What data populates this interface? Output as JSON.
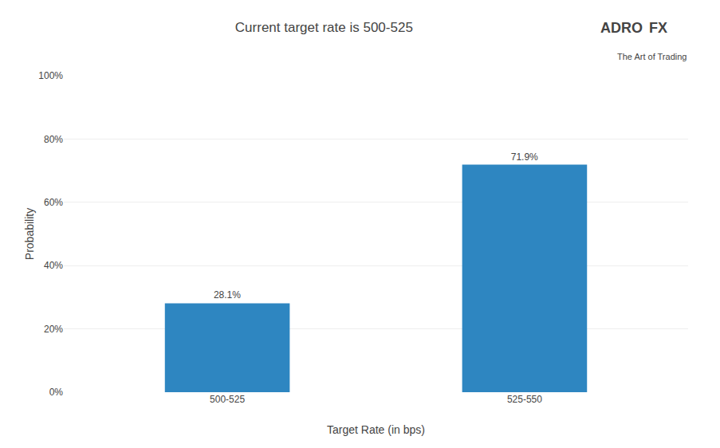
{
  "chart_data": {
    "type": "bar",
    "title": "Current target rate is 500-525",
    "xlabel": "Target Rate (in bps)",
    "ylabel": "Probability",
    "categories": [
      "500-525",
      "525-550"
    ],
    "values": [
      28.1,
      71.9
    ],
    "value_labels": [
      "28.1%",
      "71.9%"
    ],
    "data_labels": true,
    "color": "#2e86c1",
    "ylim": [
      0,
      100
    ],
    "yticks": [
      {
        "value": 0,
        "label": "0%"
      },
      {
        "value": 20,
        "label": "20%"
      },
      {
        "value": 40,
        "label": "40%"
      },
      {
        "value": 60,
        "label": "60%"
      },
      {
        "value": 80,
        "label": "80%"
      },
      {
        "value": 100,
        "label": "100%"
      }
    ],
    "grid": true,
    "annotations": [
      "ADRO",
      "FX",
      "The Art of Trading"
    ]
  }
}
